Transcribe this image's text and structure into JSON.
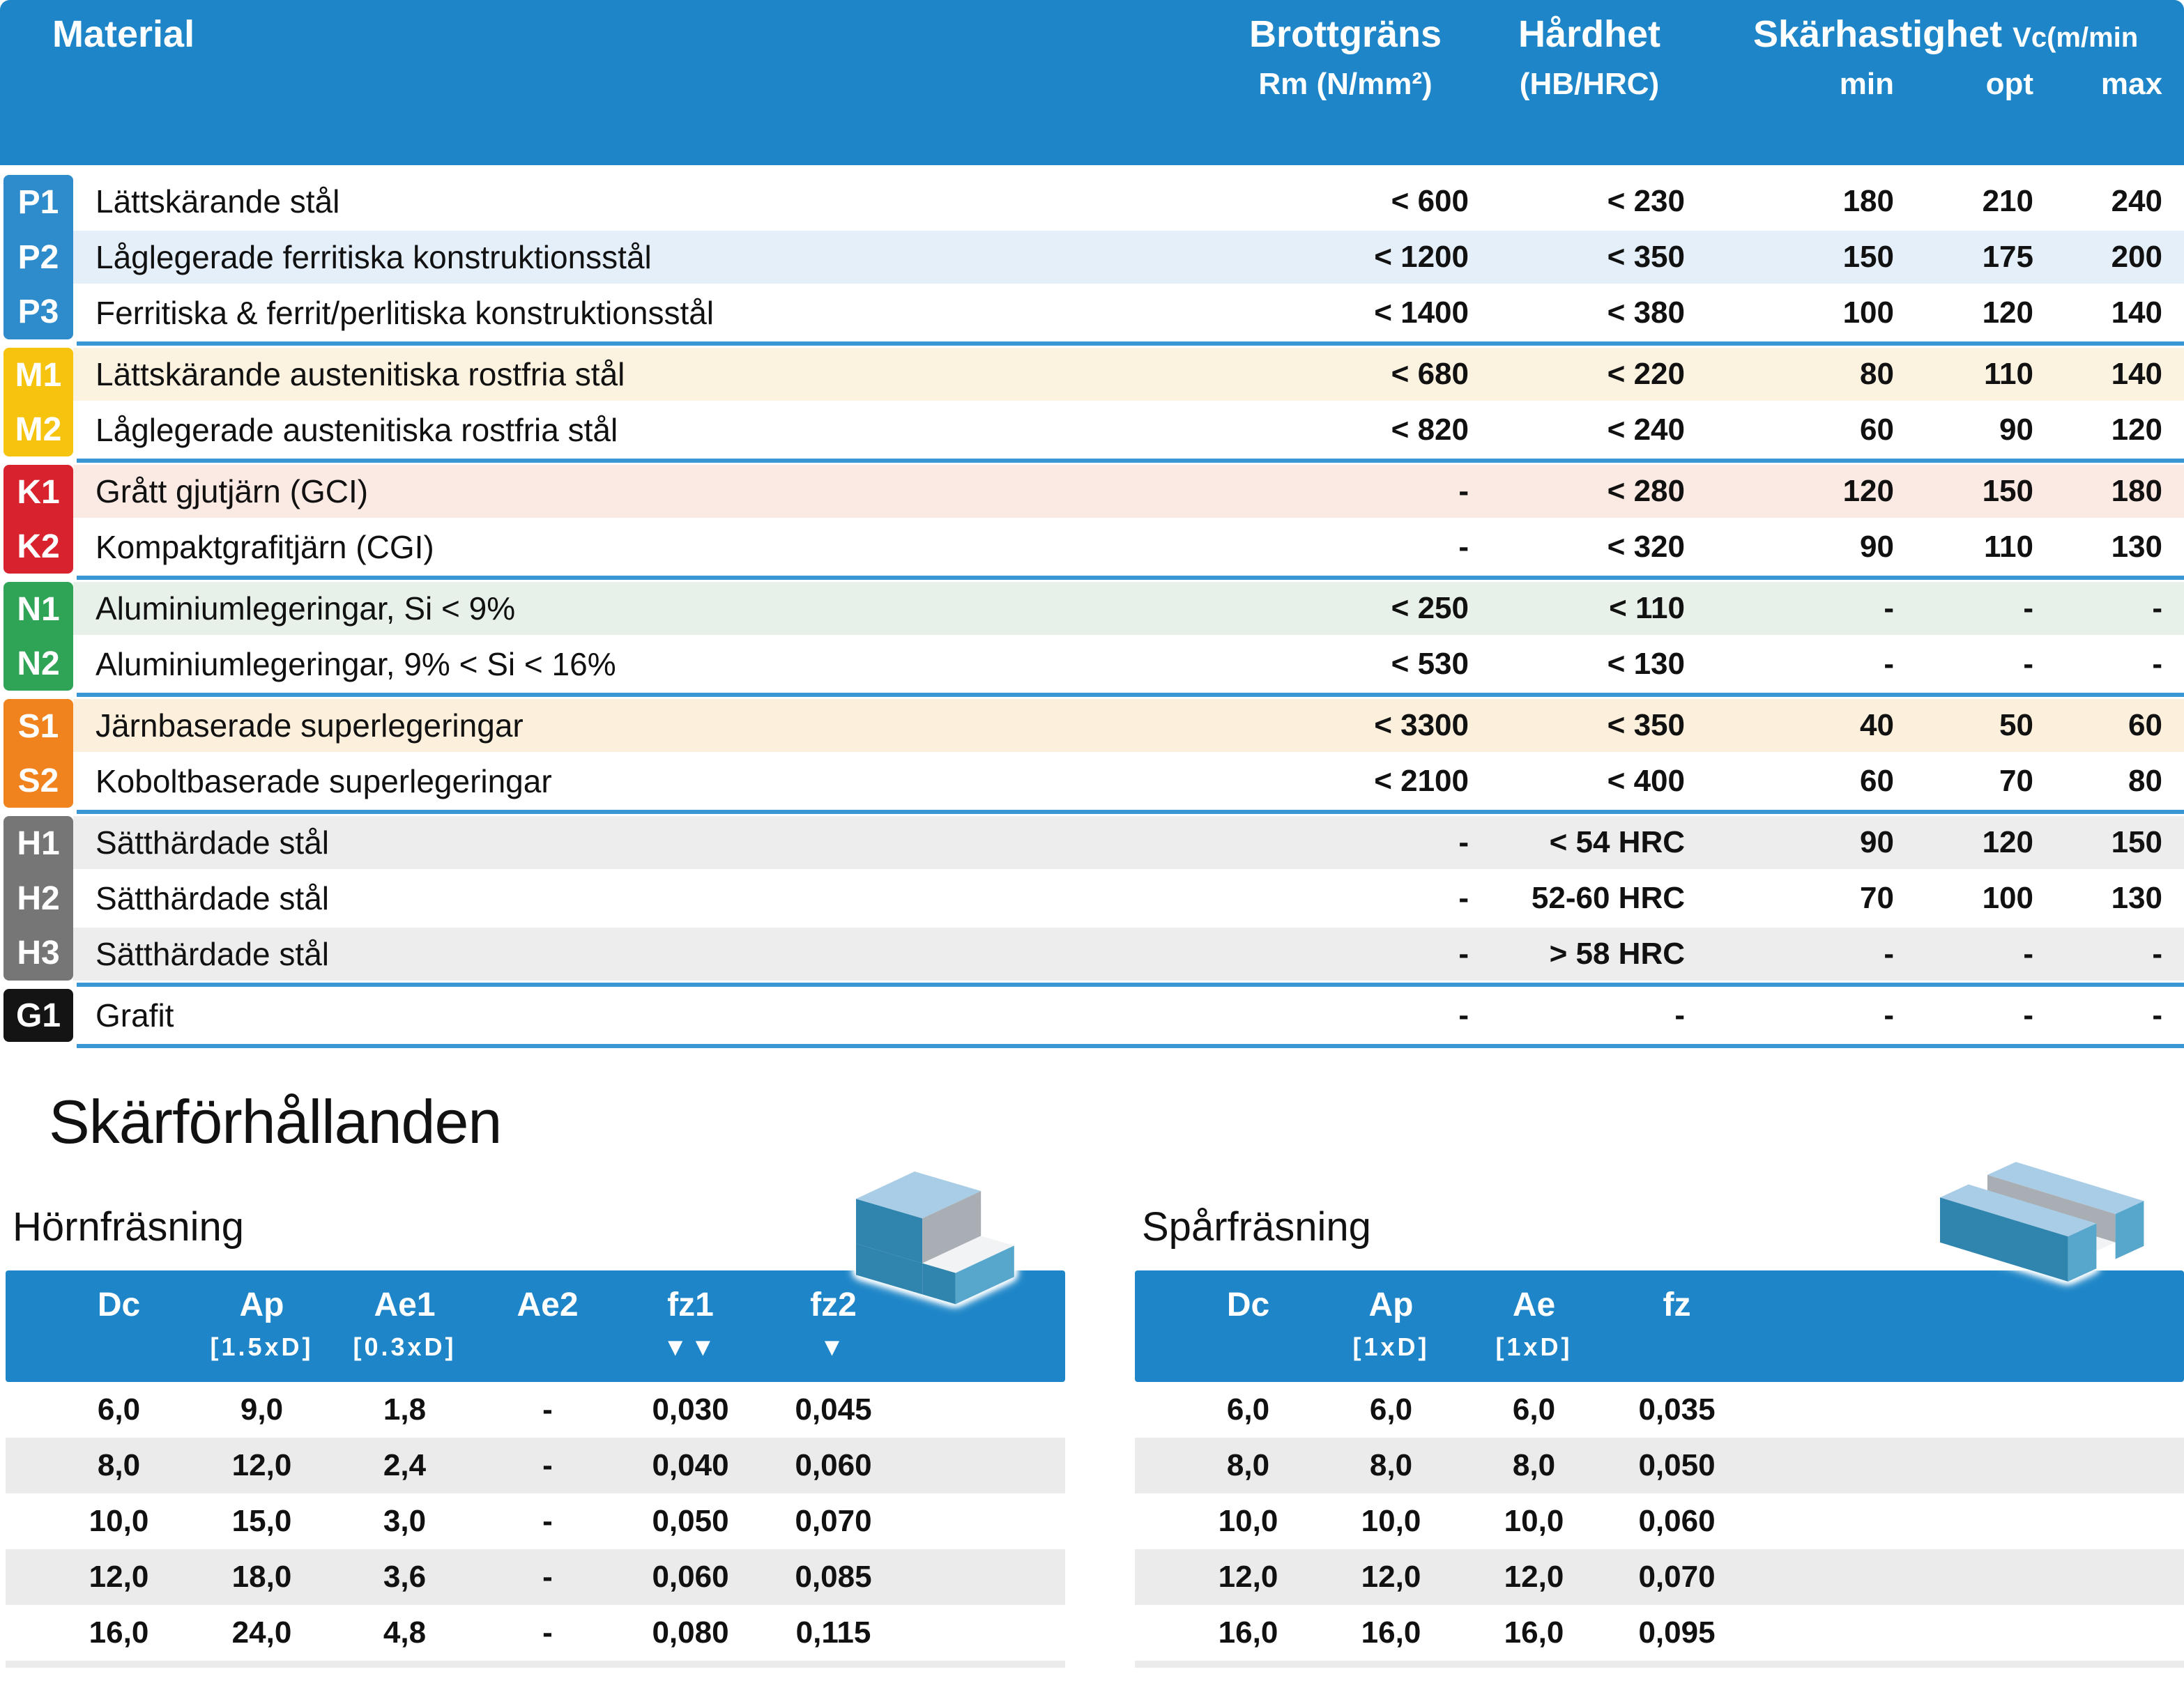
{
  "material_table": {
    "header": {
      "material": "Material",
      "brottgrans": "Brottgräns",
      "hardhet": "Hårdhet",
      "skarhastighet": "Skärhastighet",
      "vc_unit": "Vc(m/min",
      "rm_unit": "Rm (N/mm²)",
      "hb_unit": "(HB/HRC)",
      "min": "min",
      "opt": "opt",
      "max": "max"
    },
    "groups": [
      {
        "color": "#2E8CCC",
        "rows": [
          {
            "code": "P1",
            "name": "Lättskärande stål",
            "rm": "< 600",
            "hb": "< 230",
            "min": "180",
            "opt": "210",
            "max": "240",
            "tint": "#FFFFFF"
          },
          {
            "code": "P2",
            "name": "Låglegerade ferritiska konstruktionsstål",
            "rm": "< 1200",
            "hb": "< 350",
            "min": "150",
            "opt": "175",
            "max": "200",
            "tint": "#E4EFFA"
          },
          {
            "code": "P3",
            "name": "Ferritiska & ferrit/perlitiska konstruktionsstål",
            "rm": "< 1400",
            "hb": "< 380",
            "min": "100",
            "opt": "120",
            "max": "140",
            "tint": "#FFFFFF"
          }
        ]
      },
      {
        "color": "#F6C40E",
        "rows": [
          {
            "code": "M1",
            "name": "Lättskärande austenitiska rostfria stål",
            "rm": "< 680",
            "hb": "< 220",
            "min": "80",
            "opt": "110",
            "max": "140",
            "tint": "#FBF3E0"
          },
          {
            "code": "M2",
            "name": "Låglegerade austenitiska rostfria stål",
            "rm": "< 820",
            "hb": "< 240",
            "min": "60",
            "opt": "90",
            "max": "120",
            "tint": "#FFFFFF"
          }
        ]
      },
      {
        "color": "#D8232F",
        "rows": [
          {
            "code": "K1",
            "name": "Grått gjutjärn (GCI)",
            "rm": "-",
            "hb": "< 280",
            "min": "120",
            "opt": "150",
            "max": "180",
            "tint": "#FBE9E3"
          },
          {
            "code": "K2",
            "name": "Kompaktgrafitjärn (CGI)",
            "rm": "-",
            "hb": "< 320",
            "min": "90",
            "opt": "110",
            "max": "130",
            "tint": "#FFFFFF"
          }
        ]
      },
      {
        "color": "#2FA457",
        "rows": [
          {
            "code": "N1",
            "name": "Aluminiumlegeringar, Si < 9%",
            "rm": "< 250",
            "hb": "< 110",
            "min": "-",
            "opt": "-",
            "max": "-",
            "tint": "#E8F1E9"
          },
          {
            "code": "N2",
            "name": "Aluminiumlegeringar, 9% < Si < 16%",
            "rm": "< 530",
            "hb": "< 130",
            "min": "-",
            "opt": "-",
            "max": "-",
            "tint": "#FFFFFF"
          }
        ]
      },
      {
        "color": "#F0831E",
        "rows": [
          {
            "code": "S1",
            "name": "Järnbaserade superlegeringar",
            "rm": "< 3300",
            "hb": "< 350",
            "min": "40",
            "opt": "50",
            "max": "60",
            "tint": "#FCEFDB"
          },
          {
            "code": "S2",
            "name": "Koboltbaserade superlegeringar",
            "rm": "< 2100",
            "hb": "< 400",
            "min": "60",
            "opt": "70",
            "max": "80",
            "tint": "#FFFFFF"
          }
        ]
      },
      {
        "color": "#767676",
        "rows": [
          {
            "code": "H1",
            "name": "Sätthärdade stål",
            "rm": "-",
            "hb": "< 54 HRC",
            "min": "90",
            "opt": "120",
            "max": "150",
            "tint": "#EDEDED"
          },
          {
            "code": "H2",
            "name": "Sätthärdade stål",
            "rm": "-",
            "hb": "52-60 HRC",
            "min": "70",
            "opt": "100",
            "max": "130",
            "tint": "#FFFFFF"
          },
          {
            "code": "H3",
            "name": "Sätthärdade stål",
            "rm": "-",
            "hb": "> 58 HRC",
            "min": "-",
            "opt": "-",
            "max": "-",
            "tint": "#EDEDED"
          }
        ]
      },
      {
        "color": "#141414",
        "rows": [
          {
            "code": "G1",
            "name": "Grafit",
            "rm": "-",
            "hb": "-",
            "min": "-",
            "opt": "-",
            "max": "-",
            "tint": "#FFFFFF"
          }
        ]
      }
    ]
  },
  "section": {
    "title": "Skärförhållanden",
    "corner": {
      "heading": "Hörnfräsning",
      "columns": [
        {
          "label": "Dc",
          "sub": ""
        },
        {
          "label": "Ap",
          "sub": "[1.5xD]"
        },
        {
          "label": "Ae1",
          "sub": "[0.3xD]"
        },
        {
          "label": "Ae2",
          "sub": ""
        },
        {
          "label": "fz1",
          "sub": "▼▼"
        },
        {
          "label": "fz2",
          "sub": "▼"
        }
      ],
      "rows": [
        [
          "6,0",
          "9,0",
          "1,8",
          "-",
          "0,030",
          "0,045"
        ],
        [
          "8,0",
          "12,0",
          "2,4",
          "-",
          "0,040",
          "0,060"
        ],
        [
          "10,0",
          "15,0",
          "3,0",
          "-",
          "0,050",
          "0,070"
        ],
        [
          "12,0",
          "18,0",
          "3,6",
          "-",
          "0,060",
          "0,085"
        ],
        [
          "16,0",
          "24,0",
          "4,8",
          "-",
          "0,080",
          "0,115"
        ]
      ]
    },
    "slot": {
      "heading": "Spårfräsning",
      "columns": [
        {
          "label": "Dc",
          "sub": ""
        },
        {
          "label": "Ap",
          "sub": "[1xD]"
        },
        {
          "label": "Ae",
          "sub": "[1xD]"
        },
        {
          "label": "fz",
          "sub": ""
        }
      ],
      "rows": [
        [
          "6,0",
          "6,0",
          "6,0",
          "0,035"
        ],
        [
          "8,0",
          "8,0",
          "8,0",
          "0,050"
        ],
        [
          "10,0",
          "10,0",
          "10,0",
          "0,060"
        ],
        [
          "12,0",
          "12,0",
          "12,0",
          "0,070"
        ],
        [
          "16,0",
          "16,0",
          "16,0",
          "0,095"
        ]
      ]
    }
  },
  "colors": {
    "header_blue": "#1E86C8",
    "separator_blue": "#3B97D4",
    "stripe_gray": "#EBEBEB"
  }
}
